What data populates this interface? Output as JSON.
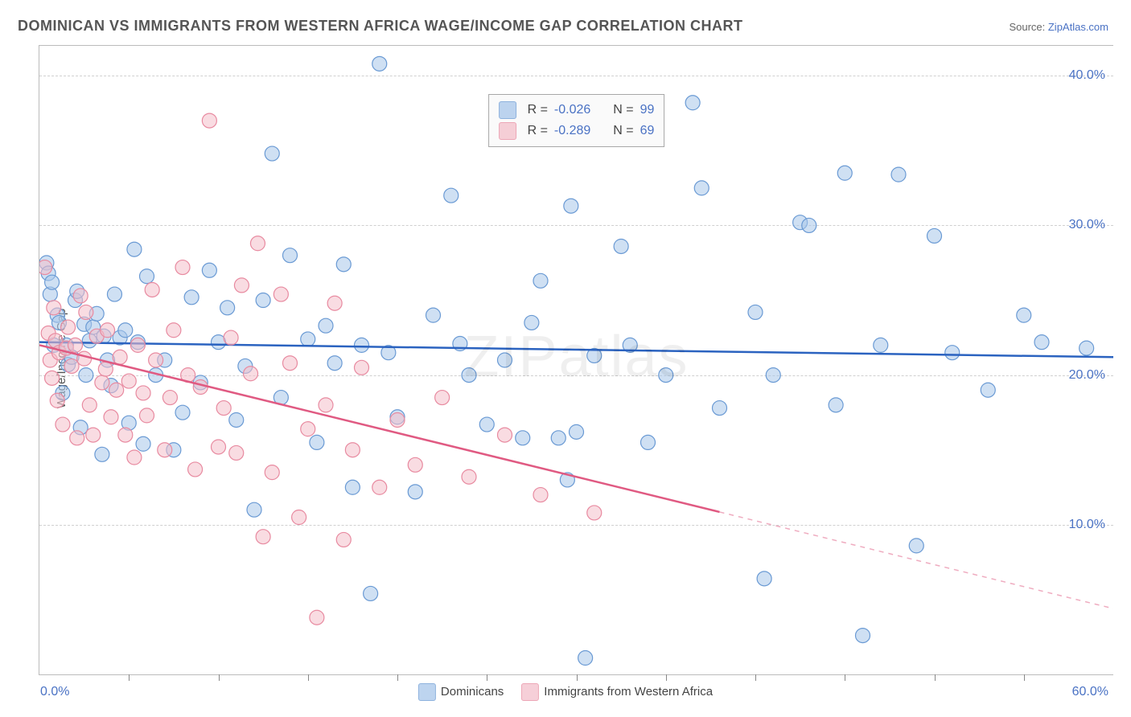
{
  "title": "DOMINICAN VS IMMIGRANTS FROM WESTERN AFRICA WAGE/INCOME GAP CORRELATION CHART",
  "source_prefix": "Source: ",
  "source_link": "ZipAtlas.com",
  "ylabel": "Wage/Income Gap",
  "watermark": "ZIPatlas",
  "chart": {
    "type": "scatter",
    "background_color": "#ffffff",
    "grid_color": "#d0d0d0",
    "axis_color": "#bbbbbb",
    "xlim": [
      0,
      60
    ],
    "ylim": [
      0,
      42
    ],
    "xtick_label_left": "0.0%",
    "xtick_label_right": "60.0%",
    "xtick_positions": [
      5,
      10,
      15,
      20,
      25,
      30,
      35,
      40,
      45,
      50,
      55
    ],
    "yticks": [
      {
        "v": 10,
        "label": "10.0%"
      },
      {
        "v": 20,
        "label": "20.0%"
      },
      {
        "v": 30,
        "label": "30.0%"
      },
      {
        "v": 40,
        "label": "40.0%"
      }
    ],
    "series": [
      {
        "name": "Dominicans",
        "color_fill": "#a8c6ea",
        "color_stroke": "#6a9ad4",
        "line_color": "#2b63c0",
        "marker_radius": 9,
        "marker_opacity": 0.55,
        "R_label": "R = ",
        "R_value": "-0.026",
        "N_label": "N = ",
        "N_value": "99",
        "trend": {
          "x1": 0,
          "y1": 22.2,
          "x2": 60,
          "y2": 21.2,
          "dash_from_x": 60
        },
        "points": [
          [
            0.4,
            27.5
          ],
          [
            0.5,
            26.8
          ],
          [
            0.6,
            25.4
          ],
          [
            0.7,
            26.2
          ],
          [
            0.8,
            22.0
          ],
          [
            1.0,
            24.0
          ],
          [
            1.1,
            23.5
          ],
          [
            1.3,
            18.8
          ],
          [
            1.5,
            22.0
          ],
          [
            1.6,
            20.7
          ],
          [
            1.8,
            21.2
          ],
          [
            2.0,
            25.0
          ],
          [
            2.1,
            25.6
          ],
          [
            2.3,
            16.5
          ],
          [
            2.5,
            23.4
          ],
          [
            2.6,
            20.0
          ],
          [
            2.8,
            22.3
          ],
          [
            3.0,
            23.2
          ],
          [
            3.2,
            24.1
          ],
          [
            3.5,
            14.7
          ],
          [
            3.6,
            22.6
          ],
          [
            3.8,
            21.0
          ],
          [
            4.0,
            19.3
          ],
          [
            4.2,
            25.4
          ],
          [
            4.5,
            22.5
          ],
          [
            4.8,
            23.0
          ],
          [
            5.0,
            16.8
          ],
          [
            5.3,
            28.4
          ],
          [
            5.5,
            22.2
          ],
          [
            5.8,
            15.4
          ],
          [
            6.0,
            26.6
          ],
          [
            6.5,
            20.0
          ],
          [
            7.0,
            21.0
          ],
          [
            7.5,
            15.0
          ],
          [
            8.0,
            17.5
          ],
          [
            8.5,
            25.2
          ],
          [
            9.0,
            19.5
          ],
          [
            9.5,
            27.0
          ],
          [
            10.0,
            22.2
          ],
          [
            10.5,
            24.5
          ],
          [
            11.0,
            17.0
          ],
          [
            11.5,
            20.6
          ],
          [
            12.0,
            11.0
          ],
          [
            12.5,
            25.0
          ],
          [
            13.0,
            34.8
          ],
          [
            13.5,
            18.5
          ],
          [
            14.0,
            28.0
          ],
          [
            15.0,
            22.4
          ],
          [
            15.5,
            15.5
          ],
          [
            16.0,
            23.3
          ],
          [
            16.5,
            20.8
          ],
          [
            17.0,
            27.4
          ],
          [
            17.5,
            12.5
          ],
          [
            18.0,
            22.0
          ],
          [
            18.5,
            5.4
          ],
          [
            19.0,
            40.8
          ],
          [
            19.5,
            21.5
          ],
          [
            20.0,
            17.2
          ],
          [
            21.0,
            12.2
          ],
          [
            22.0,
            24.0
          ],
          [
            23.0,
            32.0
          ],
          [
            23.5,
            22.1
          ],
          [
            24.0,
            20.0
          ],
          [
            25.0,
            16.7
          ],
          [
            26.0,
            21.0
          ],
          [
            27.0,
            15.8
          ],
          [
            27.5,
            23.5
          ],
          [
            28.0,
            26.3
          ],
          [
            29.0,
            15.8
          ],
          [
            29.5,
            13.0
          ],
          [
            29.7,
            31.3
          ],
          [
            30.0,
            16.2
          ],
          [
            30.5,
            1.1
          ],
          [
            31.0,
            21.3
          ],
          [
            32.5,
            28.6
          ],
          [
            33.0,
            22.0
          ],
          [
            34.0,
            15.5
          ],
          [
            35.0,
            20.0
          ],
          [
            36.5,
            38.2
          ],
          [
            37.0,
            32.5
          ],
          [
            38.0,
            17.8
          ],
          [
            40.0,
            24.2
          ],
          [
            40.5,
            6.4
          ],
          [
            41.0,
            20.0
          ],
          [
            42.5,
            30.2
          ],
          [
            43.0,
            30.0
          ],
          [
            44.5,
            18.0
          ],
          [
            45.0,
            33.5
          ],
          [
            46.0,
            2.6
          ],
          [
            47.0,
            22.0
          ],
          [
            48.0,
            33.4
          ],
          [
            49.0,
            8.6
          ],
          [
            50.0,
            29.3
          ],
          [
            51.0,
            21.5
          ],
          [
            53.0,
            19.0
          ],
          [
            55.0,
            24.0
          ],
          [
            56.0,
            22.2
          ],
          [
            58.5,
            21.8
          ]
        ]
      },
      {
        "name": "Immigrants from Western Africa",
        "color_fill": "#f4c0cb",
        "color_stroke": "#e88aa0",
        "line_color": "#e05a82",
        "marker_radius": 9,
        "marker_opacity": 0.55,
        "R_label": "R = ",
        "R_value": "-0.289",
        "N_label": "N = ",
        "N_value": "69",
        "trend": {
          "x1": 0,
          "y1": 22.0,
          "x2": 60,
          "y2": 4.4,
          "dash_from_x": 38
        },
        "points": [
          [
            0.3,
            27.2
          ],
          [
            0.5,
            22.8
          ],
          [
            0.6,
            21.0
          ],
          [
            0.7,
            19.8
          ],
          [
            0.8,
            24.5
          ],
          [
            0.9,
            22.3
          ],
          [
            1.0,
            18.3
          ],
          [
            1.1,
            21.5
          ],
          [
            1.3,
            16.7
          ],
          [
            1.5,
            21.8
          ],
          [
            1.6,
            23.2
          ],
          [
            1.8,
            20.6
          ],
          [
            2.0,
            22.0
          ],
          [
            2.1,
            15.8
          ],
          [
            2.3,
            25.3
          ],
          [
            2.5,
            21.1
          ],
          [
            2.6,
            24.2
          ],
          [
            2.8,
            18.0
          ],
          [
            3.0,
            16.0
          ],
          [
            3.2,
            22.6
          ],
          [
            3.5,
            19.5
          ],
          [
            3.7,
            20.4
          ],
          [
            3.8,
            23.0
          ],
          [
            4.0,
            17.2
          ],
          [
            4.3,
            19.0
          ],
          [
            4.5,
            21.2
          ],
          [
            4.8,
            16.0
          ],
          [
            5.0,
            19.6
          ],
          [
            5.3,
            14.5
          ],
          [
            5.5,
            22.0
          ],
          [
            5.8,
            18.8
          ],
          [
            6.0,
            17.3
          ],
          [
            6.3,
            25.7
          ],
          [
            6.5,
            21.0
          ],
          [
            7.0,
            15.0
          ],
          [
            7.3,
            18.5
          ],
          [
            7.5,
            23.0
          ],
          [
            8.0,
            27.2
          ],
          [
            8.3,
            20.0
          ],
          [
            8.7,
            13.7
          ],
          [
            9.0,
            19.2
          ],
          [
            9.5,
            37.0
          ],
          [
            10.0,
            15.2
          ],
          [
            10.3,
            17.8
          ],
          [
            10.7,
            22.5
          ],
          [
            11.0,
            14.8
          ],
          [
            11.3,
            26.0
          ],
          [
            11.8,
            20.1
          ],
          [
            12.2,
            28.8
          ],
          [
            12.5,
            9.2
          ],
          [
            13.0,
            13.5
          ],
          [
            13.5,
            25.4
          ],
          [
            14.0,
            20.8
          ],
          [
            14.5,
            10.5
          ],
          [
            15.0,
            16.4
          ],
          [
            15.5,
            3.8
          ],
          [
            16.0,
            18.0
          ],
          [
            16.5,
            24.8
          ],
          [
            17.0,
            9.0
          ],
          [
            17.5,
            15.0
          ],
          [
            18.0,
            20.5
          ],
          [
            19.0,
            12.5
          ],
          [
            20.0,
            17.0
          ],
          [
            21.0,
            14.0
          ],
          [
            22.5,
            18.5
          ],
          [
            24.0,
            13.2
          ],
          [
            26.0,
            16.0
          ],
          [
            28.0,
            12.0
          ],
          [
            31.0,
            10.8
          ]
        ]
      }
    ]
  },
  "bottom_legend": [
    {
      "label": "Dominicans",
      "color": "#a8c6ea",
      "border": "#6a9ad4"
    },
    {
      "label": "Immigrants from Western Africa",
      "color": "#f4c0cb",
      "border": "#e88aa0"
    }
  ]
}
